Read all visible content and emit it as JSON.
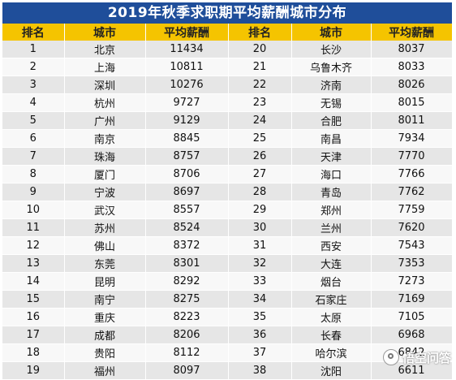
{
  "title": "2019年秋季求职期平均薪酬城市分布",
  "headers": [
    "排名",
    "城市",
    "平均薪酬",
    "排名",
    "城市",
    "平均薪酬"
  ],
  "left": [
    [
      "1",
      "北京",
      "11434"
    ],
    [
      "2",
      "上海",
      "10811"
    ],
    [
      "3",
      "深圳",
      "10276"
    ],
    [
      "4",
      "杭州",
      "9727"
    ],
    [
      "5",
      "广州",
      "9129"
    ],
    [
      "6",
      "南京",
      "8845"
    ],
    [
      "7",
      "珠海",
      "8757"
    ],
    [
      "8",
      "厦门",
      "8706"
    ],
    [
      "9",
      "宁波",
      "8697"
    ],
    [
      "10",
      "武汉",
      "8557"
    ],
    [
      "11",
      "苏州",
      "8524"
    ],
    [
      "12",
      "佛山",
      "8372"
    ],
    [
      "13",
      "东莞",
      "8301"
    ],
    [
      "14",
      "昆明",
      "8292"
    ],
    [
      "15",
      "南宁",
      "8275"
    ],
    [
      "16",
      "重庆",
      "8223"
    ],
    [
      "17",
      "成都",
      "8206"
    ],
    [
      "18",
      "贵阳",
      "8112"
    ],
    [
      "19",
      "福州",
      "8097"
    ]
  ],
  "right": [
    [
      "20",
      "长沙",
      "8037"
    ],
    [
      "21",
      "乌鲁木齐",
      "8033"
    ],
    [
      "22",
      "济南",
      "8026"
    ],
    [
      "23",
      "无锡",
      "8015"
    ],
    [
      "24",
      "合肥",
      "8011"
    ],
    [
      "25",
      "南昌",
      "7934"
    ],
    [
      "26",
      "天津",
      "7770"
    ],
    [
      "27",
      "海口",
      "7766"
    ],
    [
      "28",
      "青岛",
      "7762"
    ],
    [
      "29",
      "郑州",
      "7759"
    ],
    [
      "30",
      "兰州",
      "7620"
    ],
    [
      "31",
      "西安",
      "7543"
    ],
    [
      "32",
      "大连",
      "7353"
    ],
    [
      "33",
      "烟台",
      "7273"
    ],
    [
      "34",
      "石家庄",
      "7169"
    ],
    [
      "35",
      "太原",
      "7105"
    ],
    [
      "36",
      "长春",
      "6968"
    ],
    [
      "37",
      "哈尔滨",
      "6842"
    ],
    [
      "38",
      "沈阳",
      "6611"
    ]
  ],
  "watermark": "悟空问答",
  "colors": {
    "title_bg": "#1f4e9a",
    "header_bg": "#f5c400",
    "row_odd": "#e6e6e6",
    "row_even": "#f8f8f8"
  }
}
